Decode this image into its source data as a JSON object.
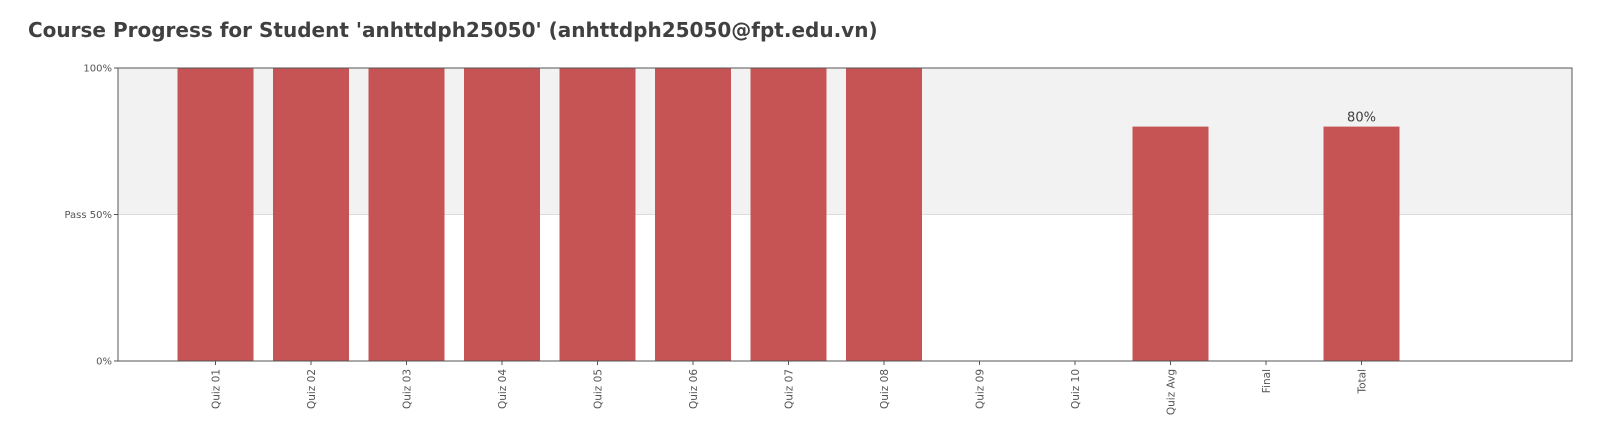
{
  "page": {
    "title": "Course Progress for Student 'anhttdph25050' (anhttdph25050@fpt.edu.vn)"
  },
  "chart_data": {
    "type": "bar",
    "title": "Course Progress for Student 'anhttdph25050' (anhttdph25050@fpt.edu.vn)",
    "categories": [
      "Quiz 01",
      "Quiz 02",
      "Quiz 03",
      "Quiz 04",
      "Quiz 05",
      "Quiz 06",
      "Quiz 07",
      "Quiz 08",
      "Quiz 09",
      "Quiz 10",
      "Quiz Avg",
      "Final",
      "Total"
    ],
    "values": [
      100,
      100,
      100,
      100,
      100,
      100,
      100,
      100,
      0,
      0,
      80,
      0,
      80
    ],
    "ylim": [
      0,
      100
    ],
    "y_ticks": [
      {
        "value": 0,
        "label": "0%"
      },
      {
        "value": 50,
        "label": "Pass 50%"
      },
      {
        "value": 100,
        "label": "100%"
      }
    ],
    "pass_threshold": 50,
    "data_labels": [
      {
        "category": "Total",
        "label": "80%"
      }
    ],
    "xlabel": "",
    "ylabel": "",
    "bar_color": "#c44e4e",
    "pass_band_color": "#f2f2f2",
    "grid": false,
    "legend": "none"
  }
}
